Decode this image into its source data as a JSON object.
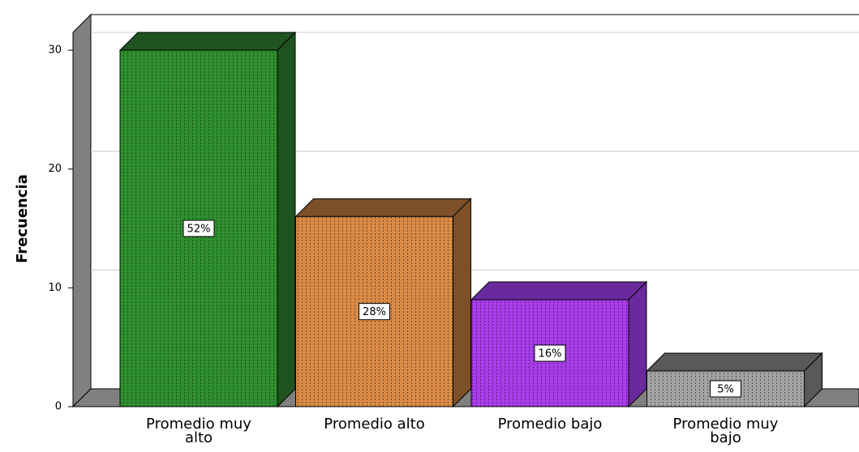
{
  "chart_data": {
    "type": "bar3d",
    "y_label": "Frecuencia",
    "categories": [
      "Promedio muy alto",
      "Promedio alto",
      "Promedio bajo",
      "Promedio muy bajo"
    ],
    "values": [
      30,
      16,
      9,
      3
    ],
    "data_labels": [
      "52%",
      "28%",
      "16%",
      "5%"
    ],
    "colors": [
      "#2f8f2f",
      "#d98a45",
      "#a63de8",
      "#a3a3a3"
    ],
    "side_colors": [
      "#1f531f",
      "#7d5029",
      "#6a2a9e",
      "#595959"
    ],
    "ylim": [
      0,
      30
    ],
    "yticks": [
      0,
      10,
      20,
      30
    ],
    "grid": true
  }
}
